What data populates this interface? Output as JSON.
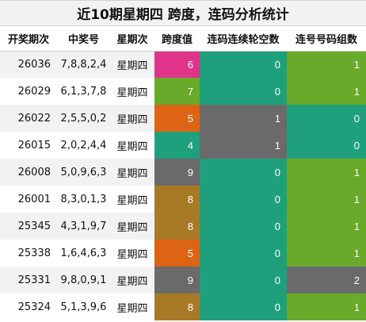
{
  "title": "近10期星期四 跨度，连码分析统计",
  "headers": [
    "开奖期次",
    "中奖号",
    "星期次",
    "跨度值",
    "连码连续轮空数",
    "连号号码组数"
  ],
  "colors": {
    "magenta": "#e0338a",
    "green": "#6aaa2a",
    "orange": "#dc6414",
    "teal": "#1fa07c",
    "gray": "#6a6a6a",
    "brown": "#a87a26"
  },
  "rows": [
    {
      "period": "26036",
      "draw": "7,8,8,2,4",
      "weekday": "星期四",
      "span": "6",
      "span_color": "#e0338a",
      "gap": "0",
      "gap_color": "#1fa07c",
      "groups": "1",
      "groups_color": "#6aaa2a"
    },
    {
      "period": "26029",
      "draw": "6,1,3,7,8",
      "weekday": "星期四",
      "span": "7",
      "span_color": "#6aaa2a",
      "gap": "0",
      "gap_color": "#1fa07c",
      "groups": "1",
      "groups_color": "#6aaa2a"
    },
    {
      "period": "26022",
      "draw": "2,5,5,0,2",
      "weekday": "星期四",
      "span": "5",
      "span_color": "#dc6414",
      "gap": "1",
      "gap_color": "#6a6a6a",
      "groups": "0",
      "groups_color": "#1fa07c"
    },
    {
      "period": "26015",
      "draw": "2,0,2,4,4",
      "weekday": "星期四",
      "span": "4",
      "span_color": "#1fa07c",
      "gap": "1",
      "gap_color": "#6a6a6a",
      "groups": "0",
      "groups_color": "#1fa07c"
    },
    {
      "period": "26008",
      "draw": "5,0,9,6,3",
      "weekday": "星期四",
      "span": "9",
      "span_color": "#6a6a6a",
      "gap": "0",
      "gap_color": "#1fa07c",
      "groups": "1",
      "groups_color": "#6aaa2a"
    },
    {
      "period": "26001",
      "draw": "8,3,0,1,3",
      "weekday": "星期四",
      "span": "8",
      "span_color": "#a87a26",
      "gap": "0",
      "gap_color": "#1fa07c",
      "groups": "1",
      "groups_color": "#6aaa2a"
    },
    {
      "period": "25345",
      "draw": "4,3,1,9,7",
      "weekday": "星期四",
      "span": "8",
      "span_color": "#a87a26",
      "gap": "0",
      "gap_color": "#1fa07c",
      "groups": "1",
      "groups_color": "#6aaa2a"
    },
    {
      "period": "25338",
      "draw": "1,6,4,6,3",
      "weekday": "星期四",
      "span": "5",
      "span_color": "#dc6414",
      "gap": "0",
      "gap_color": "#1fa07c",
      "groups": "1",
      "groups_color": "#6aaa2a"
    },
    {
      "period": "25331",
      "draw": "9,8,0,9,1",
      "weekday": "星期四",
      "span": "9",
      "span_color": "#6a6a6a",
      "gap": "0",
      "gap_color": "#1fa07c",
      "groups": "2",
      "groups_color": "#6a6a6a"
    },
    {
      "period": "25324",
      "draw": "5,1,3,9,6",
      "weekday": "星期四",
      "span": "8",
      "span_color": "#a87a26",
      "gap": "0",
      "gap_color": "#1fa07c",
      "groups": "1",
      "groups_color": "#6aaa2a"
    }
  ]
}
